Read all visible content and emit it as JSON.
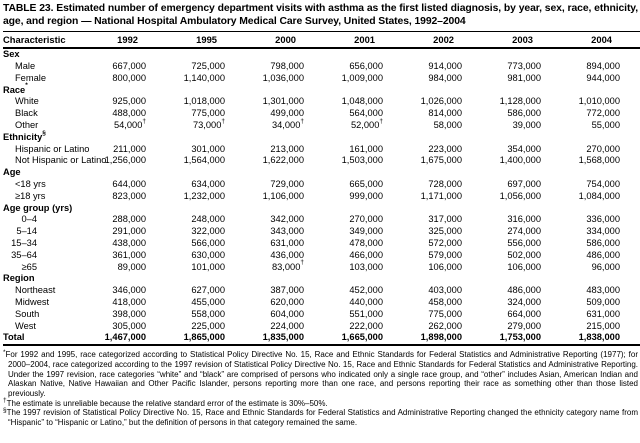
{
  "title": "TABLE 23. Estimated number of emergency department visits with asthma as the first listed diagnosis, by year, sex, race, ethnicity, age, and region — National Hospital Ambulatory Medical Care Survey, United States, 1992–2004",
  "table": {
    "char_header": "Characteristic",
    "years": [
      "1992",
      "1995",
      "2000",
      "2001",
      "2002",
      "2003",
      "2004"
    ],
    "rows": [
      {
        "type": "section",
        "label": "Sex"
      },
      {
        "type": "item",
        "label": "Male",
        "values": [
          "667,000",
          "725,000",
          "798,000",
          "656,000",
          "914,000",
          "773,000",
          "894,000"
        ]
      },
      {
        "type": "item",
        "label": "Female",
        "values": [
          "800,000",
          "1,140,000",
          "1,036,000",
          "1,009,000",
          "984,000",
          "981,000",
          "944,000"
        ]
      },
      {
        "type": "section",
        "label": "Race",
        "sup": "*"
      },
      {
        "type": "item",
        "label": "White",
        "values": [
          "925,000",
          "1,018,000",
          "1,301,000",
          "1,048,000",
          "1,026,000",
          "1,128,000",
          "1,010,000"
        ]
      },
      {
        "type": "item",
        "label": "Black",
        "values": [
          "488,000",
          "775,000",
          "499,000",
          "564,000",
          "814,000",
          "586,000",
          "772,000"
        ]
      },
      {
        "type": "item",
        "label": "Other",
        "values": [
          "54,000†",
          "73,000†",
          "34,000†",
          "52,000†",
          "58,000",
          "39,000",
          "55,000"
        ]
      },
      {
        "type": "section",
        "label": "Ethnicity",
        "sup": "§"
      },
      {
        "type": "item",
        "label": "Hispanic or Latino",
        "values": [
          "211,000",
          "301,000",
          "213,000",
          "161,000",
          "223,000",
          "354,000",
          "270,000"
        ]
      },
      {
        "type": "item",
        "label": "Not Hispanic or Latino",
        "values": [
          "1,256,000",
          "1,564,000",
          "1,622,000",
          "1,503,000",
          "1,675,000",
          "1,400,000",
          "1,568,000"
        ]
      },
      {
        "type": "section",
        "label": "Age"
      },
      {
        "type": "item",
        "label": "<18 yrs",
        "values": [
          "644,000",
          "634,000",
          "729,000",
          "665,000",
          "728,000",
          "697,000",
          "754,000"
        ]
      },
      {
        "type": "item",
        "label": "≥18 yrs",
        "values": [
          "823,000",
          "1,232,000",
          "1,106,000",
          "999,000",
          "1,171,000",
          "1,056,000",
          "1,084,000"
        ]
      },
      {
        "type": "section",
        "label": "Age group (yrs)"
      },
      {
        "type": "range",
        "label": "0–4",
        "values": [
          "288,000",
          "248,000",
          "342,000",
          "270,000",
          "317,000",
          "316,000",
          "336,000"
        ]
      },
      {
        "type": "range",
        "label": "5–14",
        "values": [
          "291,000",
          "322,000",
          "343,000",
          "349,000",
          "325,000",
          "274,000",
          "334,000"
        ]
      },
      {
        "type": "range",
        "label": "15–34",
        "values": [
          "438,000",
          "566,000",
          "631,000",
          "478,000",
          "572,000",
          "556,000",
          "586,000"
        ]
      },
      {
        "type": "range",
        "label": "35–64",
        "values": [
          "361,000",
          "630,000",
          "436,000",
          "466,000",
          "579,000",
          "502,000",
          "486,000"
        ]
      },
      {
        "type": "range",
        "label": "≥65",
        "values": [
          "89,000",
          "101,000",
          "83,000†",
          "103,000",
          "106,000",
          "106,000",
          "96,000"
        ]
      },
      {
        "type": "section",
        "label": "Region"
      },
      {
        "type": "item",
        "label": "Northeast",
        "values": [
          "346,000",
          "627,000",
          "387,000",
          "452,000",
          "403,000",
          "486,000",
          "483,000"
        ]
      },
      {
        "type": "item",
        "label": "Midwest",
        "values": [
          "418,000",
          "455,000",
          "620,000",
          "440,000",
          "458,000",
          "324,000",
          "509,000"
        ]
      },
      {
        "type": "item",
        "label": "South",
        "values": [
          "398,000",
          "558,000",
          "604,000",
          "551,000",
          "775,000",
          "664,000",
          "631,000"
        ]
      },
      {
        "type": "item",
        "label": "West",
        "values": [
          "305,000",
          "225,000",
          "224,000",
          "222,000",
          "262,000",
          "279,000",
          "215,000"
        ]
      },
      {
        "type": "total",
        "label": "Total",
        "values": [
          "1,467,000",
          "1,865,000",
          "1,835,000",
          "1,665,000",
          "1,898,000",
          "1,753,000",
          "1,838,000"
        ]
      }
    ]
  },
  "footnotes": [
    {
      "marker": "*",
      "text": "For 1992 and 1995, race categorized according to Statistical Policy Directive No. 15, Race and Ethnic Standards for Federal Statistics and Administrative Reporting (1977); for 2000–2004, race categorized according to the 1997 revision of Statistical Policy Directive No. 15, Race and Ethnic Standards for Federal Statistics and Administrative Reporting. Under the 1997 revision, race categories “white” and “black” are comprised of persons who indicated only a single race group, and “other” includes Asian, American Indian and Alaskan Native, Native Hawaiian and Other Pacific Islander, persons reporting more than one race, and persons reporting their race as something other than those listed previously."
    },
    {
      "marker": "†",
      "text": "The estimate is unreliable because the relative standard error of the estimate is 30%–50%."
    },
    {
      "marker": "§",
      "text": "The 1997 revision of Statistical Policy Directive No. 15, Race and Ethnic Standards for Federal Statistics and Administrative Reporting changed the ethnicity category name from “Hispanic” to “Hispanic or Latino,” but the definition of persons in that category remained the same."
    }
  ]
}
